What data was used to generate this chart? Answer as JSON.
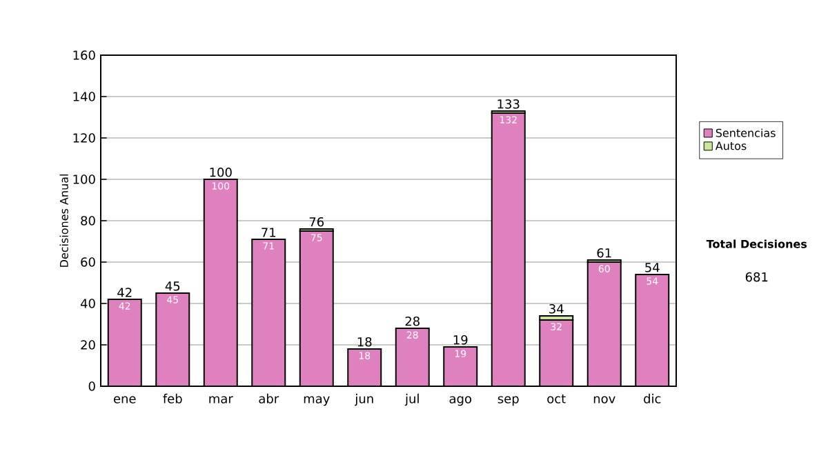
{
  "chart_data": {
    "type": "bar",
    "stacked": true,
    "categories": [
      "ene",
      "feb",
      "mar",
      "abr",
      "may",
      "jun",
      "jul",
      "ago",
      "sep",
      "oct",
      "nov",
      "dic"
    ],
    "series": [
      {
        "name": "Sentencias",
        "color": "#df80bf",
        "values": [
          42,
          45,
          100,
          71,
          75,
          18,
          28,
          19,
          132,
          32,
          60,
          54
        ],
        "value_labels": [
          "42",
          "45",
          "100",
          "71",
          "75",
          "18",
          "28",
          "19",
          "132",
          "32",
          "60",
          "54"
        ]
      },
      {
        "name": "Autos",
        "color": "#cce699",
        "values": [
          0,
          0,
          0,
          0,
          1,
          0,
          0,
          0,
          1,
          2,
          1,
          0
        ]
      }
    ],
    "totals": [
      "42",
      "45",
      "100",
      "71",
      "76",
      "18",
      "28",
      "19",
      "133",
      "34",
      "61",
      "54"
    ],
    "ylabel": "Decisiones Anual",
    "ylim": [
      0,
      160
    ],
    "yticks": [
      0,
      20,
      40,
      60,
      80,
      100,
      120,
      140,
      160
    ],
    "grid": "y",
    "legend": "right",
    "annotations": [
      "Total Decisiones",
      "681"
    ]
  }
}
